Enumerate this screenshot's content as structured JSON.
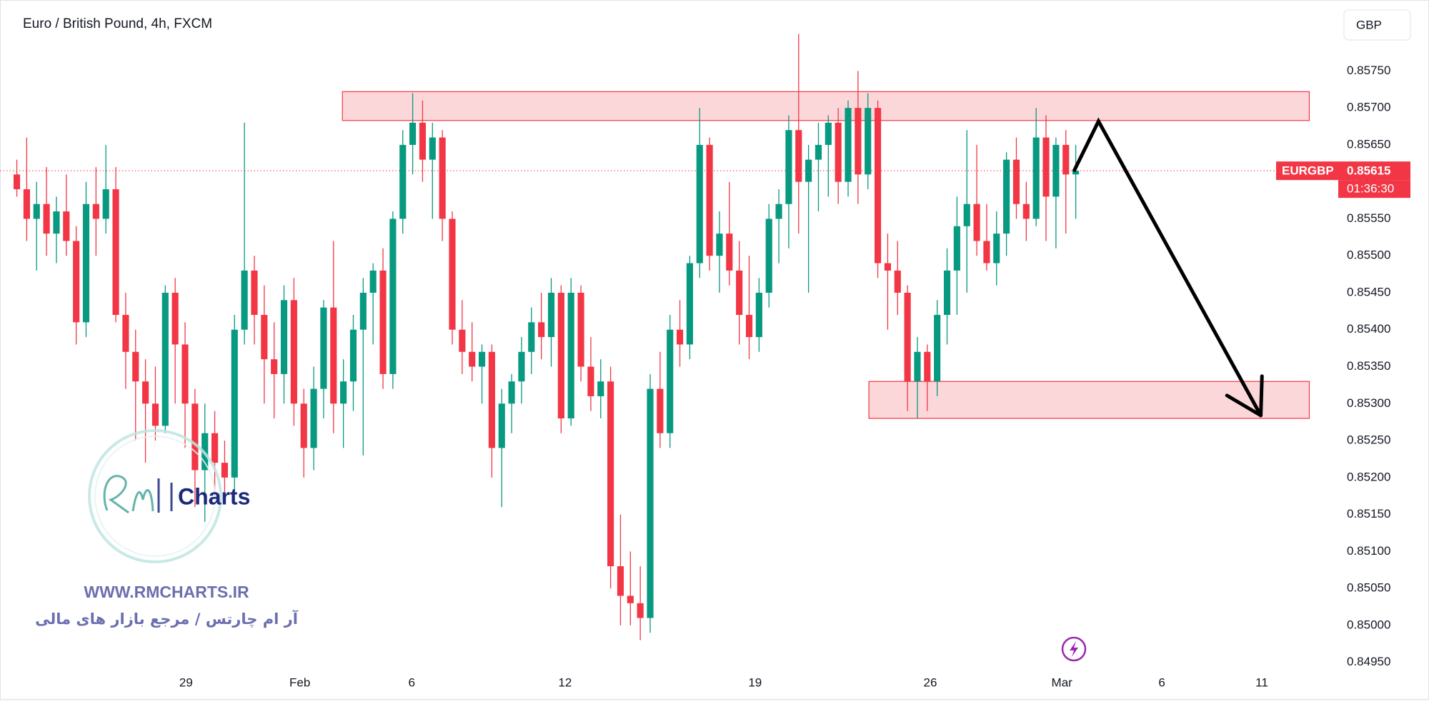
{
  "chart_data": {
    "type": "candlestick",
    "title": "Euro / British Pound, 4h, FXCM",
    "currency": "GBP",
    "series": [
      {
        "name": "EURGBP",
        "up_color": "#089981",
        "down_color": "#f23645",
        "ohlc": [
          [
            0.8561,
            0.8563,
            0.8558,
            0.8559
          ],
          [
            0.8559,
            0.8566,
            0.8552,
            0.8555
          ],
          [
            0.8555,
            0.856,
            0.8548,
            0.8557
          ],
          [
            0.8557,
            0.8562,
            0.855,
            0.8553
          ],
          [
            0.8553,
            0.8558,
            0.8549,
            0.8556
          ],
          [
            0.8556,
            0.8561,
            0.855,
            0.8552
          ],
          [
            0.8552,
            0.8554,
            0.8538,
            0.8541
          ],
          [
            0.8541,
            0.856,
            0.8539,
            0.8557
          ],
          [
            0.8557,
            0.8562,
            0.855,
            0.8555
          ],
          [
            0.8555,
            0.8565,
            0.8553,
            0.8559
          ],
          [
            0.8559,
            0.8562,
            0.8541,
            0.8542
          ],
          [
            0.8542,
            0.8545,
            0.8532,
            0.8537
          ],
          [
            0.8537,
            0.854,
            0.8525,
            0.8533
          ],
          [
            0.8533,
            0.8536,
            0.8522,
            0.853
          ],
          [
            0.853,
            0.8535,
            0.8525,
            0.8527
          ],
          [
            0.8527,
            0.8546,
            0.8526,
            0.8545
          ],
          [
            0.8545,
            0.8547,
            0.853,
            0.8538
          ],
          [
            0.8538,
            0.8541,
            0.8524,
            0.853
          ],
          [
            0.853,
            0.8532,
            0.8516,
            0.8521
          ],
          [
            0.8521,
            0.853,
            0.8514,
            0.8526
          ],
          [
            0.8526,
            0.8529,
            0.8517,
            0.8522
          ],
          [
            0.8522,
            0.8525,
            0.8518,
            0.852
          ],
          [
            0.852,
            0.8542,
            0.8518,
            0.854
          ],
          [
            0.854,
            0.8568,
            0.8538,
            0.8548
          ],
          [
            0.8548,
            0.855,
            0.8538,
            0.8542
          ],
          [
            0.8542,
            0.8546,
            0.853,
            0.8536
          ],
          [
            0.8536,
            0.8541,
            0.8528,
            0.8534
          ],
          [
            0.8534,
            0.8546,
            0.853,
            0.8544
          ],
          [
            0.8544,
            0.8547,
            0.8527,
            0.853
          ],
          [
            0.853,
            0.8532,
            0.852,
            0.8524
          ],
          [
            0.8524,
            0.8535,
            0.8521,
            0.8532
          ],
          [
            0.8532,
            0.8544,
            0.8528,
            0.8543
          ],
          [
            0.8543,
            0.8552,
            0.8526,
            0.853
          ],
          [
            0.853,
            0.8536,
            0.8524,
            0.8533
          ],
          [
            0.8533,
            0.8542,
            0.8529,
            0.854
          ],
          [
            0.854,
            0.8547,
            0.8523,
            0.8545
          ],
          [
            0.8545,
            0.8549,
            0.8538,
            0.8548
          ],
          [
            0.8548,
            0.8551,
            0.8532,
            0.8534
          ],
          [
            0.8534,
            0.8556,
            0.8532,
            0.8555
          ],
          [
            0.8555,
            0.8567,
            0.8553,
            0.8565
          ],
          [
            0.8565,
            0.8572,
            0.8561,
            0.8568
          ],
          [
            0.8568,
            0.8571,
            0.856,
            0.8563
          ],
          [
            0.8563,
            0.8568,
            0.8555,
            0.8566
          ],
          [
            0.8566,
            0.8567,
            0.8552,
            0.8555
          ],
          [
            0.8555,
            0.8556,
            0.8538,
            0.854
          ],
          [
            0.854,
            0.8544,
            0.8534,
            0.8537
          ],
          [
            0.8537,
            0.8541,
            0.8533,
            0.8535
          ],
          [
            0.8535,
            0.8538,
            0.853,
            0.8537
          ],
          [
            0.8537,
            0.8538,
            0.852,
            0.8524
          ],
          [
            0.8524,
            0.8532,
            0.8516,
            0.853
          ],
          [
            0.853,
            0.8534,
            0.8526,
            0.8533
          ],
          [
            0.8533,
            0.8539,
            0.853,
            0.8537
          ],
          [
            0.8537,
            0.8543,
            0.8534,
            0.8541
          ],
          [
            0.8541,
            0.8545,
            0.8536,
            0.8539
          ],
          [
            0.8539,
            0.8547,
            0.8535,
            0.8545
          ],
          [
            0.8545,
            0.8546,
            0.8526,
            0.8528
          ],
          [
            0.8528,
            0.8547,
            0.8527,
            0.8545
          ],
          [
            0.8545,
            0.8546,
            0.8533,
            0.8535
          ],
          [
            0.8535,
            0.8539,
            0.8529,
            0.8531
          ],
          [
            0.8531,
            0.8536,
            0.8528,
            0.8533
          ],
          [
            0.8533,
            0.8535,
            0.8505,
            0.8508
          ],
          [
            0.8508,
            0.8515,
            0.85,
            0.8504
          ],
          [
            0.8504,
            0.851,
            0.85,
            0.8503
          ],
          [
            0.8503,
            0.8508,
            0.8498,
            0.8501
          ],
          [
            0.8501,
            0.8534,
            0.8499,
            0.8532
          ],
          [
            0.8532,
            0.8537,
            0.8524,
            0.8526
          ],
          [
            0.8526,
            0.8542,
            0.8524,
            0.854
          ],
          [
            0.854,
            0.8544,
            0.8535,
            0.8538
          ],
          [
            0.8538,
            0.855,
            0.8536,
            0.8549
          ],
          [
            0.8549,
            0.857,
            0.8547,
            0.8565
          ],
          [
            0.8565,
            0.8566,
            0.8548,
            0.855
          ],
          [
            0.855,
            0.8556,
            0.8545,
            0.8553
          ],
          [
            0.8553,
            0.856,
            0.8546,
            0.8548
          ],
          [
            0.8548,
            0.8552,
            0.8538,
            0.8542
          ],
          [
            0.8542,
            0.855,
            0.8536,
            0.8539
          ],
          [
            0.8539,
            0.8547,
            0.8537,
            0.8545
          ],
          [
            0.8545,
            0.8557,
            0.8543,
            0.8555
          ],
          [
            0.8555,
            0.8559,
            0.8549,
            0.8557
          ],
          [
            0.8557,
            0.8569,
            0.8551,
            0.8567
          ],
          [
            0.8567,
            0.858,
            0.8553,
            0.856
          ],
          [
            0.856,
            0.8565,
            0.8545,
            0.8563
          ],
          [
            0.8563,
            0.8568,
            0.8556,
            0.8565
          ],
          [
            0.8565,
            0.8569,
            0.8558,
            0.8568
          ],
          [
            0.8568,
            0.857,
            0.8557,
            0.856
          ],
          [
            0.856,
            0.8571,
            0.8558,
            0.857
          ],
          [
            0.857,
            0.8575,
            0.8557,
            0.8561
          ],
          [
            0.8561,
            0.8572,
            0.8559,
            0.857
          ],
          [
            0.857,
            0.8571,
            0.8547,
            0.8549
          ],
          [
            0.8549,
            0.8553,
            0.854,
            0.8548
          ],
          [
            0.8548,
            0.8552,
            0.8542,
            0.8545
          ],
          [
            0.8545,
            0.8546,
            0.8529,
            0.8533
          ],
          [
            0.8533,
            0.8539,
            0.8528,
            0.8537
          ],
          [
            0.8537,
            0.8538,
            0.8529,
            0.8533
          ],
          [
            0.8533,
            0.8544,
            0.8531,
            0.8542
          ],
          [
            0.8542,
            0.8551,
            0.8538,
            0.8548
          ],
          [
            0.8548,
            0.8558,
            0.8542,
            0.8554
          ],
          [
            0.8554,
            0.8567,
            0.8545,
            0.8557
          ],
          [
            0.8557,
            0.8565,
            0.855,
            0.8552
          ],
          [
            0.8552,
            0.8557,
            0.8548,
            0.8549
          ],
          [
            0.8549,
            0.8556,
            0.8546,
            0.8553
          ],
          [
            0.8553,
            0.8564,
            0.855,
            0.8563
          ],
          [
            0.8563,
            0.8566,
            0.8555,
            0.8557
          ],
          [
            0.8557,
            0.856,
            0.8552,
            0.8555
          ],
          [
            0.8555,
            0.857,
            0.8554,
            0.8566
          ],
          [
            0.8566,
            0.8569,
            0.8552,
            0.8558
          ],
          [
            0.8558,
            0.8566,
            0.8551,
            0.8565
          ],
          [
            0.8565,
            0.8567,
            0.8553,
            0.8561
          ],
          [
            0.8561,
            0.8565,
            0.8555,
            0.85615
          ]
        ]
      }
    ],
    "last_price": 0.85615,
    "countdown": "01:36:30",
    "xlim": [
      -1.7,
      132.3
    ],
    "xticks": [
      {
        "value": 17.1,
        "label": "29"
      },
      {
        "value": 28.6,
        "label": "Feb"
      },
      {
        "value": 39.9,
        "label": "6"
      },
      {
        "value": 55.4,
        "label": "12"
      },
      {
        "value": 74.6,
        "label": "19"
      },
      {
        "value": 92.3,
        "label": "26"
      },
      {
        "value": 105.6,
        "label": "Mar"
      },
      {
        "value": 115.7,
        "label": "6"
      },
      {
        "value": 125.8,
        "label": "11"
      }
    ],
    "ylim": [
      0.8494,
      0.85846
    ],
    "yticks": [
      {
        "value": 0.8575,
        "label": "0.85750"
      },
      {
        "value": 0.857,
        "label": "0.85700"
      },
      {
        "value": 0.8565,
        "label": "0.85650"
      },
      {
        "value": 0.856,
        "label": "0.85600"
      },
      {
        "value": 0.8555,
        "label": "0.85550"
      },
      {
        "value": 0.855,
        "label": "0.85500"
      },
      {
        "value": 0.8545,
        "label": "0.85450"
      },
      {
        "value": 0.854,
        "label": "0.85400"
      },
      {
        "value": 0.8535,
        "label": "0.85350"
      },
      {
        "value": 0.853,
        "label": "0.85300"
      },
      {
        "value": 0.8525,
        "label": "0.85250"
      },
      {
        "value": 0.852,
        "label": "0.85200"
      },
      {
        "value": 0.8515,
        "label": "0.85150"
      },
      {
        "value": 0.851,
        "label": "0.85100"
      },
      {
        "value": 0.8505,
        "label": "0.85050"
      },
      {
        "value": 0.85,
        "label": "0.85000"
      },
      {
        "value": 0.8495,
        "label": "0.84950"
      }
    ],
    "zones": [
      {
        "xlim": [
          32.9,
          130.6
        ],
        "ylim": [
          0.85683,
          0.85722
        ]
      },
      {
        "xlim": [
          86.1,
          130.6
        ],
        "ylim": [
          0.8528,
          0.8533
        ]
      }
    ],
    "projection": {
      "x": [
        106.8,
        109.3,
        125.7
      ],
      "y": [
        0.85614,
        0.85682,
        0.85284
      ]
    },
    "watermark": {
      "brand": "Charts",
      "url": "WWW.RMCHARTS.IR",
      "tagline": "آر ام چارتس / مرجع بازار های مالی"
    }
  }
}
